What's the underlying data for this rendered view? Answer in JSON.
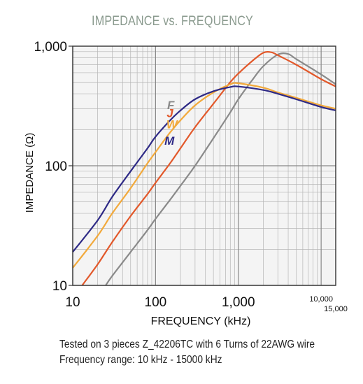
{
  "title": "IMPEDANCE vs. FREQUENCY",
  "notes": [
    "Tested on 3 pieces Z_42206TC with 6 Turns of 22AWG wire",
    "Frequency range: 10 kHz - 15000 kHz"
  ],
  "colors": {
    "M": "#2e2a86",
    "W": "#f2a93b",
    "J": "#e2582a",
    "F": "#8a8a8a",
    "grid": "#b5b5b5",
    "plot_bg": "#f4f4f4"
  },
  "chart_data": {
    "type": "line",
    "title": "IMPEDANCE vs. FREQUENCY",
    "xlabel": "FREQUENCY (kHz)",
    "ylabel": "IMPEDANCE (Ω)",
    "x_scale": "log",
    "y_scale": "log",
    "xlim": [
      10,
      15000
    ],
    "ylim": [
      10,
      1000
    ],
    "x_ticks": [
      {
        "value": 10,
        "label": "10"
      },
      {
        "value": 100,
        "label": "100"
      },
      {
        "value": 1000,
        "label": "1,000"
      },
      {
        "value": 10000,
        "label": "10,000"
      },
      {
        "value": 15000,
        "label": "15,000"
      }
    ],
    "y_ticks": [
      {
        "value": 10,
        "label": "10"
      },
      {
        "value": 100,
        "label": "100"
      },
      {
        "value": 1000,
        "label": "1,000"
      }
    ],
    "grid": true,
    "series": [
      {
        "name": "M",
        "x": [
          10,
          20,
          30,
          50,
          80,
          100,
          150,
          200,
          300,
          500,
          800,
          1000,
          2000,
          3000,
          5000,
          10000,
          15000
        ],
        "y": [
          19,
          35,
          55,
          90,
          140,
          175,
          240,
          290,
          360,
          420,
          455,
          460,
          430,
          400,
          360,
          310,
          290
        ]
      },
      {
        "name": "W",
        "x": [
          10,
          20,
          30,
          50,
          80,
          100,
          150,
          200,
          300,
          500,
          800,
          1000,
          2000,
          3000,
          5000,
          10000,
          15000
        ],
        "y": [
          14,
          26,
          40,
          65,
          105,
          130,
          190,
          240,
          320,
          410,
          480,
          490,
          450,
          410,
          370,
          320,
          300
        ]
      },
      {
        "name": "J",
        "x": [
          13,
          20,
          30,
          50,
          80,
          100,
          150,
          200,
          300,
          500,
          800,
          1000,
          1500,
          2000,
          2500,
          3000,
          5000,
          10000,
          15000
        ],
        "y": [
          10,
          15,
          23,
          38,
          58,
          72,
          105,
          140,
          210,
          330,
          500,
          590,
          760,
          880,
          890,
          840,
          700,
          530,
          460
        ]
      },
      {
        "name": "F",
        "x": [
          25,
          30,
          50,
          80,
          100,
          150,
          200,
          300,
          500,
          800,
          1000,
          1500,
          2000,
          3000,
          4000,
          5000,
          10000,
          15000
        ],
        "y": [
          10,
          12,
          19,
          29,
          36,
          52,
          68,
          100,
          170,
          280,
          360,
          530,
          680,
          850,
          860,
          780,
          580,
          480
        ]
      }
    ]
  }
}
